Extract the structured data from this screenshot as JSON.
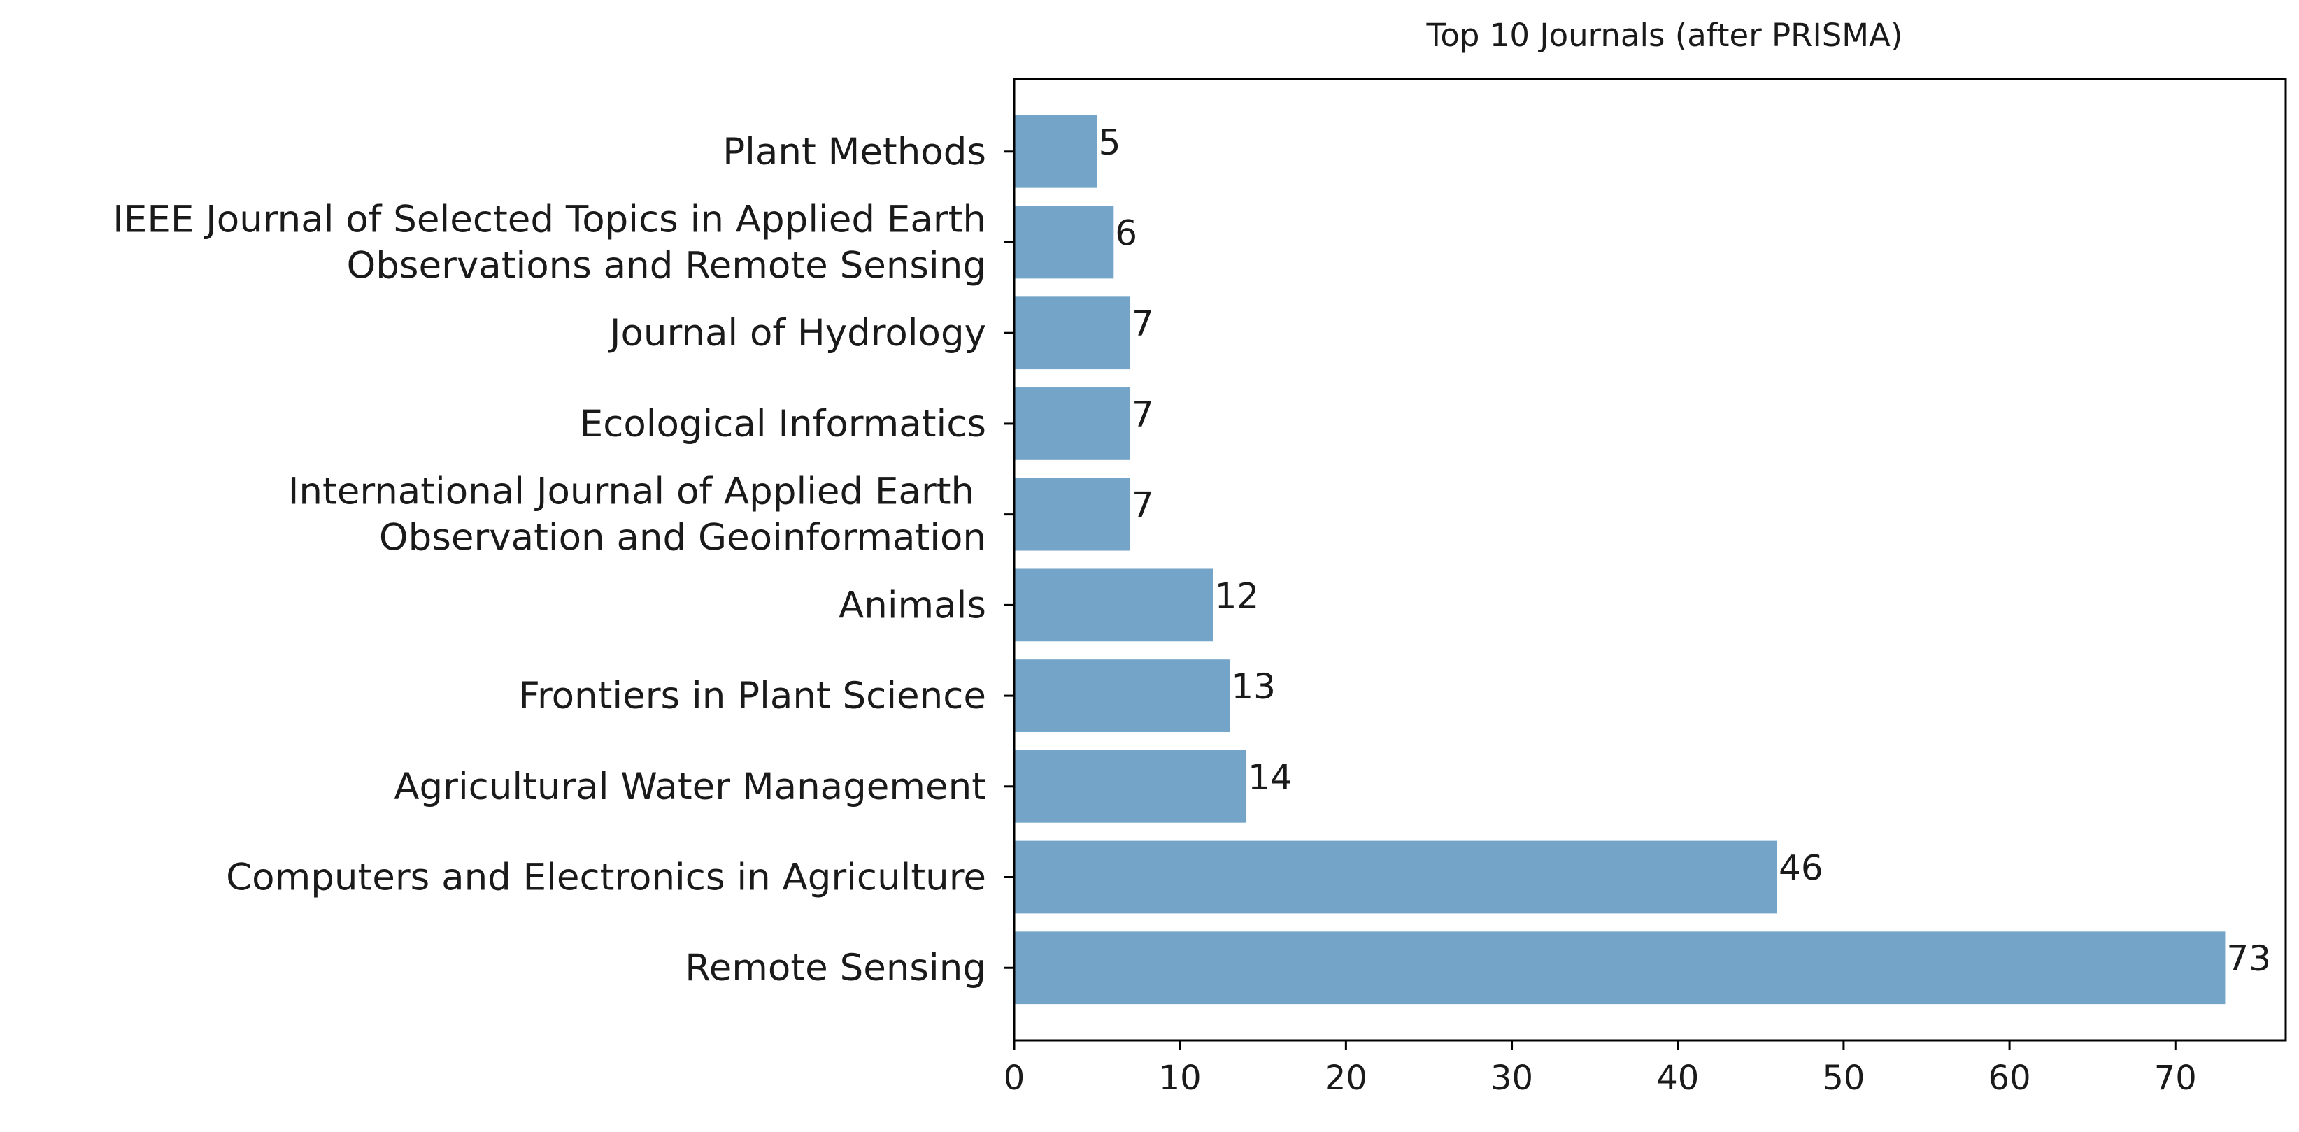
{
  "chart_data": {
    "type": "bar",
    "orientation": "horizontal",
    "title": "Top 10 Journals (after PRISMA)",
    "xlabel": "",
    "ylabel": "",
    "categories": [
      [
        "Remote Sensing"
      ],
      [
        "Computers and Electronics in Agriculture"
      ],
      [
        "Agricultural Water Management"
      ],
      [
        "Frontiers in Plant Science"
      ],
      [
        "Animals"
      ],
      [
        "International Journal of Applied Earth ",
        "Observation and Geoinformation"
      ],
      [
        "Ecological Informatics"
      ],
      [
        "Journal of Hydrology"
      ],
      [
        "IEEE Journal of Selected Topics in Applied Earth",
        "Observations and Remote Sensing"
      ],
      [
        "Plant Methods"
      ]
    ],
    "values": [
      73,
      46,
      14,
      13,
      12,
      7,
      7,
      7,
      6,
      5
    ],
    "data_labels": [
      "73",
      "46",
      "14",
      "13",
      "12",
      "7",
      "7",
      "7",
      "6",
      "5"
    ],
    "x_ticks": [
      0,
      10,
      20,
      30,
      40,
      50,
      60,
      70
    ],
    "xlim": [
      0,
      76.65
    ],
    "grid": false,
    "bar_color": "#74a5c8"
  }
}
